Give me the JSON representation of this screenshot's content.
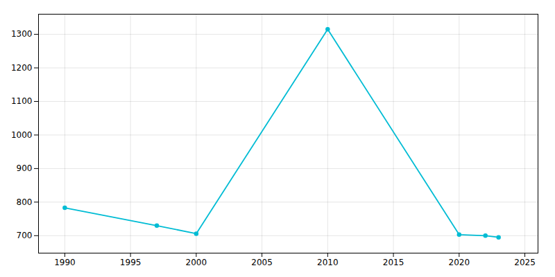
{
  "chart_data": {
    "type": "line",
    "x": [
      1990,
      1997,
      2000,
      2010,
      2020,
      2022,
      2023
    ],
    "values": [
      783,
      730,
      706,
      1315,
      703,
      700,
      695
    ],
    "color": "#00bcd4",
    "marker": "circle",
    "xlim": [
      1988,
      2026
    ],
    "ylim": [
      648,
      1360
    ],
    "xticks": [
      1990,
      1995,
      2000,
      2005,
      2010,
      2015,
      2020,
      2025
    ],
    "yticks": [
      700,
      800,
      900,
      1000,
      1100,
      1200,
      1300
    ],
    "grid": true
  }
}
